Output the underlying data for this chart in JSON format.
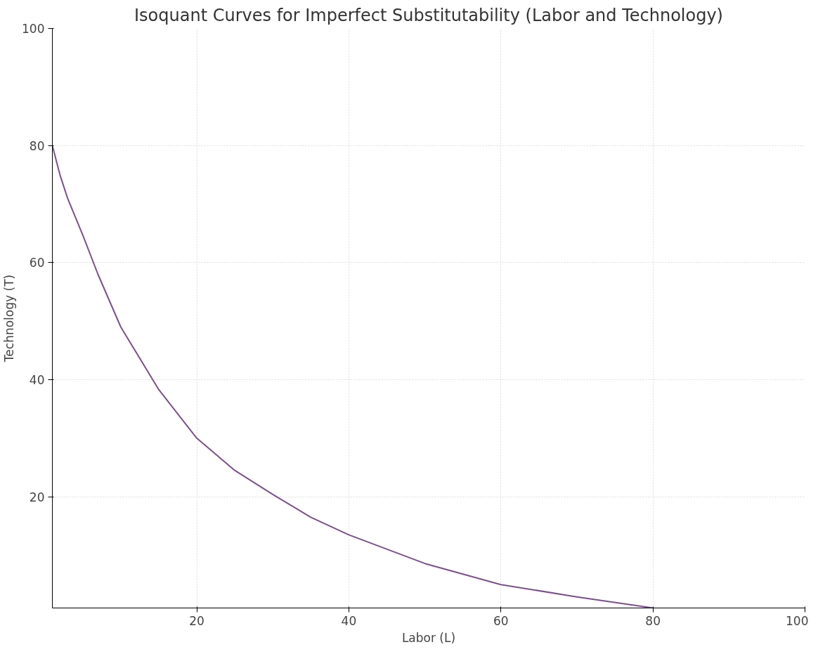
{
  "chart_data": {
    "type": "line",
    "title": "Isoquant Curves for Imperfect Substitutability (Labor and Technology)",
    "xlabel": "Labor (L)",
    "ylabel": "Technology (T)",
    "x": [
      1,
      2,
      3,
      5,
      7,
      10,
      15,
      20,
      25,
      30,
      35,
      40,
      50,
      60,
      70,
      80
    ],
    "series": [
      {
        "color": "#7b4f8e",
        "values": [
          80,
          75,
          71,
          64.7,
          58,
          49,
          38.3,
          30,
          24.5,
          20.4,
          16.5,
          13.5,
          8.6,
          5,
          2.9,
          1
        ]
      }
    ],
    "xlim": [
      1,
      100
    ],
    "ylim": [
      1,
      100
    ],
    "xticks": [
      20,
      40,
      60,
      80,
      100
    ],
    "yticks": [
      20,
      40,
      60,
      80,
      100
    ],
    "grid": true,
    "marker": "none",
    "line_style": "solid"
  }
}
